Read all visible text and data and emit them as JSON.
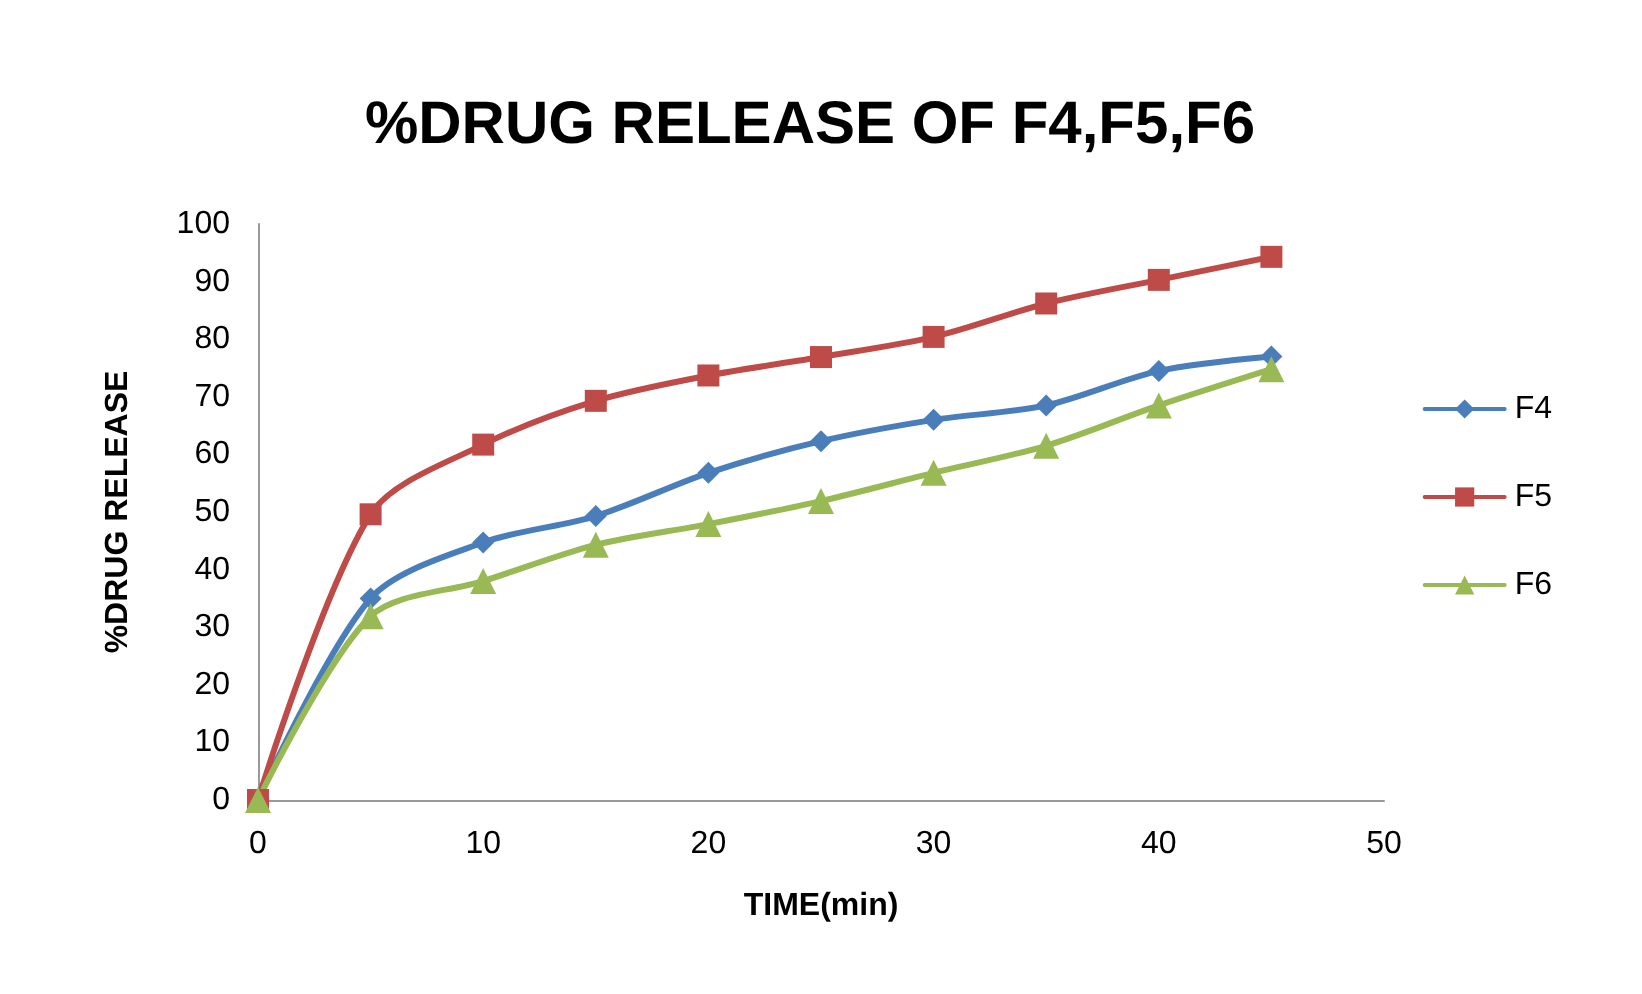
{
  "chart_data": {
    "type": "line",
    "title": "%DRUG RELEASE OF F4,F5,F6",
    "xlabel": "TIME(min)",
    "ylabel": "%DRUG RELEASE",
    "x": [
      0,
      5,
      10,
      15,
      20,
      25,
      30,
      35,
      40,
      45
    ],
    "series": [
      {
        "name": "F4",
        "color": "#4a7ebb",
        "marker": "diamond",
        "values": [
          0,
          35,
          44.7,
          49.3,
          56.8,
          62.3,
          66,
          68.5,
          74.5,
          77
        ]
      },
      {
        "name": "F5",
        "color": "#be4b48",
        "marker": "square",
        "values": [
          0,
          49.6,
          61.7,
          69.3,
          73.7,
          76.9,
          80.4,
          86.2,
          90.3,
          94.3
        ]
      },
      {
        "name": "F6",
        "color": "#98b954",
        "marker": "triangle",
        "values": [
          0,
          31.9,
          38,
          44.3,
          47.9,
          51.9,
          56.8,
          61.5,
          68.5,
          74.8
        ]
      }
    ],
    "xlim": [
      0,
      50
    ],
    "xticks": [
      0,
      10,
      20,
      30,
      40,
      50
    ],
    "ylim": [
      0,
      100
    ],
    "yticks": [
      0,
      10,
      20,
      30,
      40,
      50,
      60,
      70,
      80,
      90,
      100
    ],
    "grid": false,
    "legend": "right",
    "line_style": "solid"
  }
}
